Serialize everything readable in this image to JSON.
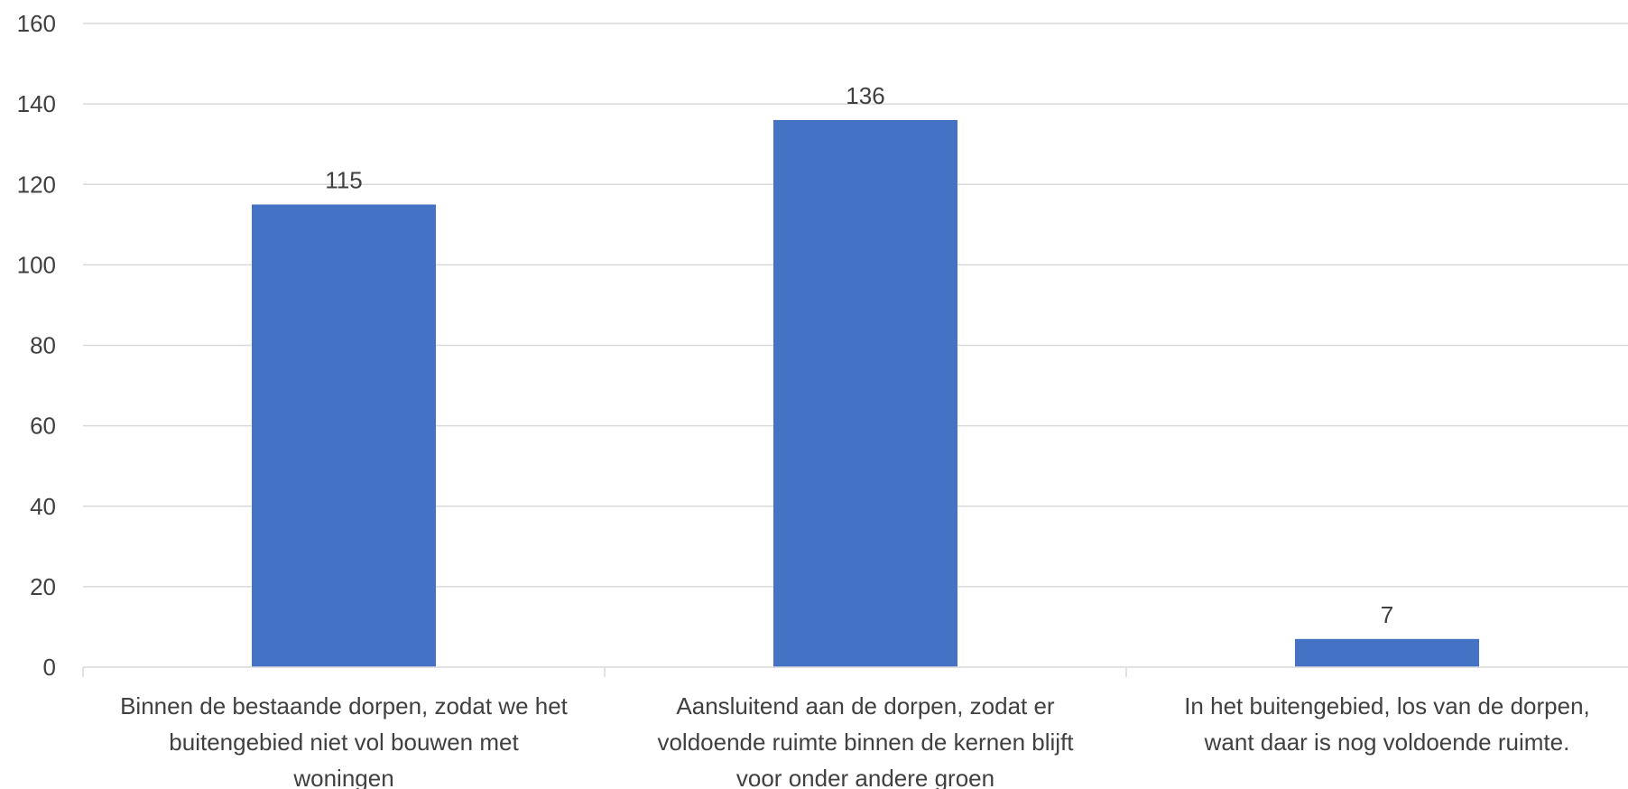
{
  "chart_data": {
    "type": "bar",
    "title": "",
    "xlabel": "",
    "ylabel": "",
    "categories": [
      [
        "Binnen de bestaande dorpen, zodat we het",
        "buitengebied niet vol bouwen met",
        "woningen"
      ],
      [
        "Aansluitend aan de dorpen, zodat er",
        "voldoende ruimte binnen de kernen blijft",
        "voor onder andere groen"
      ],
      [
        "In het buitengebied, los van de dorpen,",
        "want daar is nog voldoende ruimte."
      ]
    ],
    "values": [
      115,
      136,
      7
    ],
    "ylim": [
      0,
      160
    ],
    "yticks": [
      0,
      20,
      40,
      60,
      80,
      100,
      120,
      140,
      160
    ],
    "grid": true,
    "legend": "none",
    "bar_color": "#4472c4",
    "grid_color": "#d9d9d9",
    "text_color": "#404040"
  }
}
